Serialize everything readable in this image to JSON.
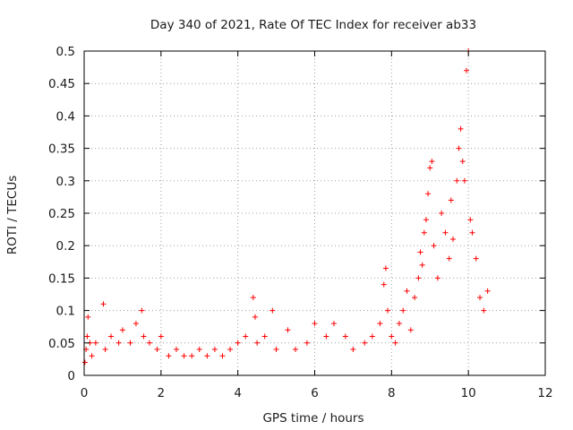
{
  "chart_data": {
    "type": "scatter",
    "title": "Day 340 of 2021, Rate Of TEC Index for receiver ab33",
    "xlabel": "GPS time / hours",
    "ylabel": "ROTI / TECUs",
    "xlim": [
      0,
      12
    ],
    "ylim": [
      0,
      0.5
    ],
    "xticks": [
      "0",
      "2",
      "4",
      "6",
      "8",
      "10",
      "12"
    ],
    "yticks": [
      "0",
      "0.05",
      "0.1",
      "0.15",
      "0.2",
      "0.25",
      "0.3",
      "0.35",
      "0.4",
      "0.45",
      "0.5"
    ],
    "grid": true,
    "marker": "+",
    "series_color": "#ff0000",
    "series": [
      {
        "name": "ROTI",
        "x": [
          0.02,
          0.05,
          0.08,
          0.1,
          0.15,
          0.2,
          0.3,
          0.5,
          0.55,
          0.7,
          0.9,
          1.0,
          1.2,
          1.35,
          1.5,
          1.55,
          1.7,
          1.9,
          2.0,
          2.2,
          2.4,
          2.6,
          2.8,
          3.0,
          3.2,
          3.4,
          3.6,
          3.8,
          4.0,
          4.2,
          4.4,
          4.45,
          4.5,
          4.7,
          4.9,
          5.0,
          5.3,
          5.5,
          5.8,
          6.0,
          6.3,
          6.5,
          6.8,
          7.0,
          7.3,
          7.5,
          7.7,
          7.8,
          7.85,
          7.9,
          8.0,
          8.1,
          8.2,
          8.3,
          8.4,
          8.5,
          8.6,
          8.7,
          8.75,
          8.8,
          8.85,
          8.9,
          8.95,
          9.0,
          9.05,
          9.1,
          9.2,
          9.3,
          9.4,
          9.5,
          9.55,
          9.6,
          9.7,
          9.75,
          9.8,
          9.85,
          9.9,
          9.95,
          10.0,
          10.05,
          10.1,
          10.2,
          10.3,
          10.4,
          10.5
        ],
        "y": [
          0.02,
          0.04,
          0.06,
          0.09,
          0.05,
          0.03,
          0.05,
          0.11,
          0.04,
          0.06,
          0.05,
          0.07,
          0.05,
          0.08,
          0.1,
          0.06,
          0.05,
          0.04,
          0.06,
          0.03,
          0.04,
          0.03,
          0.03,
          0.04,
          0.03,
          0.04,
          0.03,
          0.04,
          0.05,
          0.06,
          0.12,
          0.09,
          0.05,
          0.06,
          0.1,
          0.04,
          0.07,
          0.04,
          0.05,
          0.08,
          0.06,
          0.08,
          0.06,
          0.04,
          0.05,
          0.06,
          0.08,
          0.14,
          0.165,
          0.1,
          0.06,
          0.05,
          0.08,
          0.1,
          0.13,
          0.07,
          0.12,
          0.15,
          0.19,
          0.17,
          0.22,
          0.24,
          0.28,
          0.32,
          0.33,
          0.2,
          0.15,
          0.25,
          0.22,
          0.18,
          0.27,
          0.21,
          0.3,
          0.35,
          0.38,
          0.33,
          0.3,
          0.47,
          0.5,
          0.24,
          0.22,
          0.18,
          0.12,
          0.1,
          0.13
        ]
      }
    ]
  }
}
